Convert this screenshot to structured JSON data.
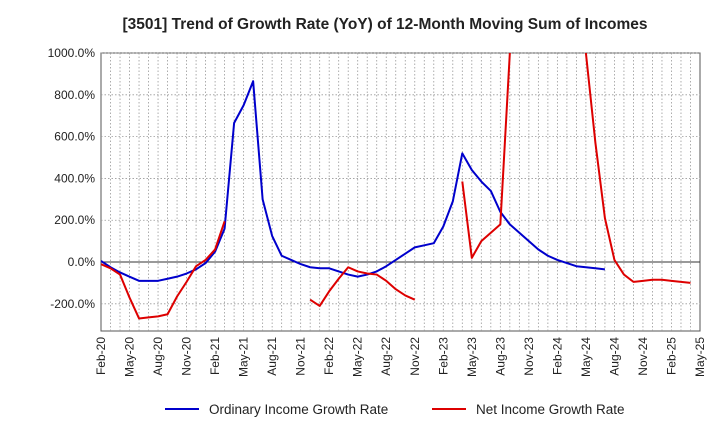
{
  "chart_data": {
    "type": "line",
    "title": "[3501]  Trend of Growth Rate (YoY) of 12-Month Moving Sum of Incomes",
    "xlabel": "",
    "ylabel": "",
    "x_ticks": [
      "Feb-20",
      "May-20",
      "Aug-20",
      "Nov-20",
      "Feb-21",
      "May-21",
      "Aug-21",
      "Nov-21",
      "Feb-22",
      "May-22",
      "Aug-22",
      "Nov-22",
      "Feb-23",
      "May-23",
      "Aug-23",
      "Nov-23",
      "Feb-24",
      "May-24",
      "Aug-24",
      "Nov-24",
      "Feb-25",
      "May-25"
    ],
    "y_ticks": [
      -200,
      0,
      200,
      400,
      600,
      800,
      1000
    ],
    "y_tick_labels": [
      "-200.0%",
      "0.0%",
      "200.0%",
      "400.0%",
      "600.0%",
      "800.0%",
      "1000.0%"
    ],
    "ylim": [
      -330,
      1000
    ],
    "grid": true,
    "legend_position": "bottom",
    "series": [
      {
        "name": "Ordinary Income Growth Rate",
        "color": "#0000cc",
        "values": [
          5,
          -25,
          -50,
          -70,
          -90,
          -90,
          -90,
          -80,
          -70,
          -55,
          -35,
          -5,
          50,
          160,
          665,
          750,
          865,
          300,
          125,
          30,
          10,
          -10,
          -25,
          -30,
          -30,
          -45,
          -60,
          -70,
          -60,
          -45,
          -20,
          10,
          40,
          70,
          80,
          90,
          170,
          290,
          520,
          440,
          385,
          340,
          240,
          180,
          140,
          100,
          60,
          30,
          10,
          -5,
          -20,
          -25,
          -30,
          -35
        ],
        "x_start": "2020-02"
      },
      {
        "name": "Net Income Growth Rate",
        "color": "#dd0000",
        "values": [
          -10,
          -30,
          -60,
          -170,
          -270,
          -265,
          -260,
          -250,
          -165,
          -95,
          -20,
          10,
          60,
          195,
          null,
          null,
          null,
          null,
          null,
          null,
          null,
          null,
          -180,
          -210,
          -140,
          -80,
          -25,
          -45,
          -55,
          -60,
          -90,
          -130,
          -160,
          -180,
          null,
          null,
          null,
          null,
          385,
          20,
          100,
          140,
          180,
          1000,
          null,
          null,
          null,
          null,
          null,
          null,
          null,
          1000,
          570,
          210,
          10,
          -60,
          -95,
          -90,
          -85,
          -85,
          -90,
          -95,
          -100
        ],
        "x_start": "2020-02",
        "segment_note_removed": true
      }
    ]
  }
}
